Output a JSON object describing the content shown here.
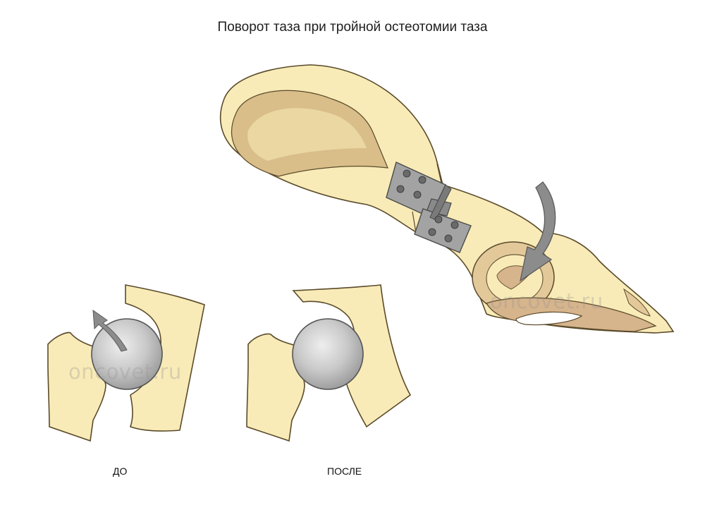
{
  "title": "Поворот таза при тройной остеотомии таза",
  "labels": {
    "before": "ДО",
    "after": "ПОСЛЕ"
  },
  "watermark": "oncovet.ru",
  "colors": {
    "bone": "#f8ebb7",
    "bone_dark": "#d9be8a",
    "cartilage": "#d6b48c",
    "plate": "#a3a3a3",
    "femoral_head": "#c4c4c4",
    "arrow": "#8c8c8c"
  }
}
